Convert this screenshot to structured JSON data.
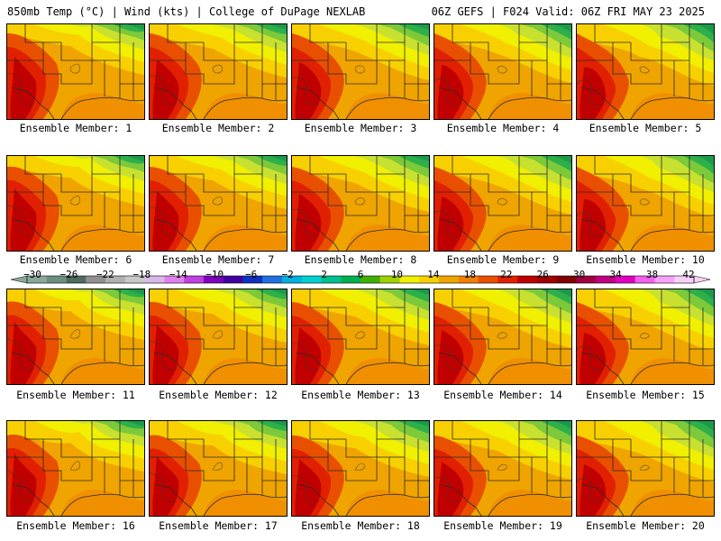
{
  "header": {
    "left_title": "850mb Temp (°C) | Wind (kts) | College of DuPage NEXLAB",
    "right_title": "06Z GEFS | F024 Valid: 06Z FRI MAY 23 2025"
  },
  "panels": [
    {
      "member": 1,
      "label": "Ensemble Member: 1"
    },
    {
      "member": 2,
      "label": "Ensemble Member: 2"
    },
    {
      "member": 3,
      "label": "Ensemble Member: 3"
    },
    {
      "member": 4,
      "label": "Ensemble Member: 4"
    },
    {
      "member": 5,
      "label": "Ensemble Member: 5"
    },
    {
      "member": 6,
      "label": "Ensemble Member: 6"
    },
    {
      "member": 7,
      "label": "Ensemble Member: 7"
    },
    {
      "member": 8,
      "label": "Ensemble Member: 8"
    },
    {
      "member": 9,
      "label": "Ensemble Member: 9"
    },
    {
      "member": 10,
      "label": "Ensemble Member: 10"
    },
    {
      "member": 11,
      "label": "Ensemble Member: 11"
    },
    {
      "member": 12,
      "label": "Ensemble Member: 12"
    },
    {
      "member": 13,
      "label": "Ensemble Member: 13"
    },
    {
      "member": 14,
      "label": "Ensemble Member: 14"
    },
    {
      "member": 15,
      "label": "Ensemble Member: 15"
    },
    {
      "member": 16,
      "label": "Ensemble Member: 16"
    },
    {
      "member": 17,
      "label": "Ensemble Member: 17"
    },
    {
      "member": 18,
      "label": "Ensemble Member: 18"
    },
    {
      "member": 19,
      "label": "Ensemble Member: 19"
    },
    {
      "member": 20,
      "label": "Ensemble Member: 20"
    }
  ],
  "colorbar": {
    "labels": [
      "−30",
      "−26",
      "−22",
      "−18",
      "−14",
      "−10",
      "−6",
      "−2",
      "2",
      "6",
      "10",
      "14",
      "18",
      "22",
      "26",
      "30",
      "34",
      "38",
      "42"
    ],
    "colors": [
      "#8aa89a",
      "#6d8f80",
      "#4d6b5e",
      "#909090",
      "#b0b0b0",
      "#c8c8c8",
      "#d8b8e8",
      "#e080f0",
      "#c040e0",
      "#8000c0",
      "#4000a0",
      "#1030c0",
      "#2070e0",
      "#00b0e0",
      "#00d0d0",
      "#00c090",
      "#00b050",
      "#40b000",
      "#a0d000",
      "#f0f000",
      "#f8d000",
      "#f0a400",
      "#f08000",
      "#e85000",
      "#e02000",
      "#c00000",
      "#a00000",
      "#800000",
      "#a00040",
      "#c00080",
      "#e000c0",
      "#f060f0",
      "#f8a0f8",
      "#f8d0f8"
    ],
    "palette": {
      "green_dark": "#1b9a4a",
      "green": "#2db04a",
      "green_light": "#7cc93a",
      "yellow_green": "#c8e030",
      "yellow": "#f0f000",
      "yellow_orange": "#f8d000",
      "orange": "#f0a400",
      "orange_dark": "#f08000",
      "red_orange": "#e85000",
      "red": "#e02000",
      "red_dark": "#c00000"
    }
  }
}
